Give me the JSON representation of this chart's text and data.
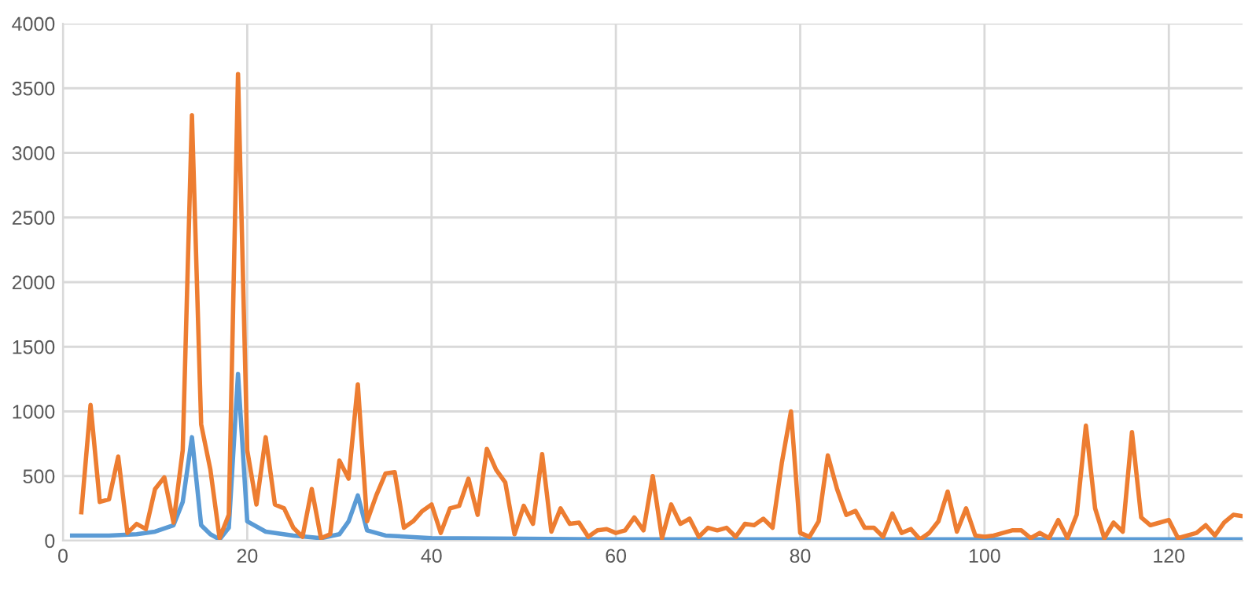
{
  "chart_data": {
    "type": "line",
    "xlim": [
      0,
      128
    ],
    "ylim": [
      0,
      4000
    ],
    "xticks": [
      0,
      20,
      40,
      60,
      80,
      100,
      120
    ],
    "yticks": [
      0,
      500,
      1000,
      1500,
      2000,
      2500,
      3000,
      3500,
      4000
    ],
    "grid": true,
    "legend": false,
    "marker": "none",
    "line_style": "solid",
    "series": [
      {
        "color": "#5b9bd5",
        "x": [
          1,
          5,
          8,
          10,
          12,
          13,
          14,
          15,
          16,
          17,
          18,
          19,
          20,
          22,
          25,
          28,
          30,
          31,
          32,
          33,
          35,
          40,
          50,
          60,
          80,
          100,
          128
        ],
        "values": [
          40,
          40,
          50,
          70,
          120,
          300,
          800,
          120,
          50,
          10,
          100,
          1290,
          150,
          70,
          40,
          20,
          50,
          150,
          350,
          80,
          40,
          20,
          15,
          10,
          10,
          10,
          10
        ]
      },
      {
        "color": "#ed7d31",
        "x": [
          2,
          3,
          4,
          5,
          6,
          7,
          8,
          9,
          10,
          11,
          12,
          13,
          14,
          15,
          16,
          17,
          18,
          19,
          20,
          21,
          22,
          23,
          24,
          25,
          26,
          27,
          28,
          29,
          30,
          31,
          32,
          33,
          34,
          35,
          36,
          37,
          38,
          39,
          40,
          41,
          42,
          43,
          44,
          45,
          46,
          47,
          48,
          49,
          50,
          51,
          52,
          53,
          54,
          55,
          56,
          57,
          58,
          59,
          60,
          61,
          62,
          63,
          64,
          65,
          66,
          67,
          68,
          69,
          70,
          71,
          72,
          73,
          74,
          75,
          76,
          77,
          78,
          79,
          80,
          81,
          82,
          83,
          84,
          85,
          86,
          87,
          88,
          89,
          90,
          91,
          92,
          93,
          94,
          95,
          96,
          97,
          98,
          99,
          100,
          101,
          102,
          103,
          104,
          105,
          106,
          107,
          108,
          109,
          110,
          111,
          112,
          113,
          114,
          115,
          116,
          117,
          118,
          119,
          120,
          121,
          122,
          123,
          124,
          125,
          126,
          127,
          128
        ],
        "values": [
          220,
          1050,
          300,
          320,
          650,
          60,
          130,
          90,
          400,
          490,
          140,
          700,
          3290,
          900,
          550,
          20,
          200,
          3610,
          700,
          280,
          800,
          280,
          250,
          100,
          30,
          400,
          20,
          50,
          620,
          480,
          1210,
          150,
          350,
          520,
          530,
          100,
          150,
          230,
          280,
          60,
          250,
          270,
          480,
          200,
          710,
          550,
          450,
          50,
          270,
          130,
          670,
          70,
          250,
          130,
          140,
          30,
          80,
          90,
          60,
          80,
          180,
          80,
          500,
          20,
          280,
          130,
          170,
          30,
          100,
          80,
          100,
          30,
          130,
          120,
          170,
          100,
          600,
          1000,
          60,
          30,
          150,
          660,
          400,
          200,
          230,
          100,
          100,
          30,
          210,
          60,
          90,
          10,
          60,
          150,
          380,
          70,
          250,
          40,
          30,
          40,
          60,
          80,
          80,
          20,
          60,
          20,
          160,
          20,
          200,
          890,
          250,
          20,
          140,
          70,
          840,
          180,
          120,
          140,
          160,
          20,
          40,
          60,
          120,
          40,
          140,
          200,
          190
        ]
      }
    ]
  }
}
